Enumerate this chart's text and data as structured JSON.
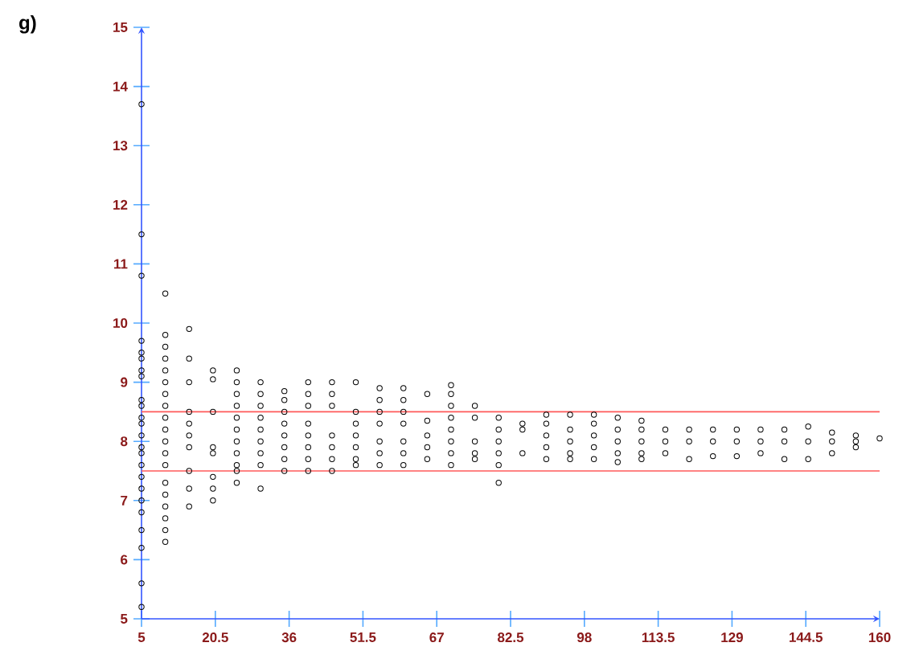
{
  "chart_data": {
    "type": "scatter",
    "marker": "circle",
    "color": "#000000",
    "annotations": [
      "g)"
    ],
    "xlim": [
      5,
      160
    ],
    "ylim": [
      5,
      15
    ],
    "xticks": [
      5,
      20.5,
      36,
      51.5,
      67,
      82.5,
      98,
      113.5,
      129,
      144.5,
      160
    ],
    "yticks": [
      5,
      6,
      7,
      8,
      9,
      10,
      11,
      12,
      13,
      14,
      15
    ],
    "ref_lines": [
      {
        "axis": "y",
        "value": 8.5,
        "color": "#ff5a5a"
      },
      {
        "axis": "y",
        "value": 7.5,
        "color": "#ff5a5a"
      }
    ],
    "x": [
      5,
      5,
      5,
      5,
      5,
      5,
      5,
      5,
      5,
      5,
      5,
      5,
      5,
      5,
      5,
      5,
      5,
      5,
      5,
      5,
      5,
      5,
      5,
      5,
      10,
      10,
      10,
      10,
      10,
      10,
      10,
      10,
      10,
      10,
      10,
      10,
      10,
      10,
      10,
      10,
      10,
      10,
      10,
      15,
      15,
      15,
      15,
      15,
      15,
      15,
      15,
      15,
      15,
      20,
      20,
      20,
      20,
      20,
      20,
      20,
      20,
      25,
      25,
      25,
      25,
      25,
      25,
      25,
      25,
      25,
      25,
      25,
      30,
      30,
      30,
      30,
      30,
      30,
      30,
      30,
      30,
      35,
      35,
      35,
      35,
      35,
      35,
      35,
      35,
      40,
      40,
      40,
      40,
      40,
      40,
      40,
      40,
      45,
      45,
      45,
      45,
      45,
      45,
      45,
      50,
      50,
      50,
      50,
      50,
      50,
      50,
      55,
      55,
      55,
      55,
      55,
      55,
      55,
      60,
      60,
      60,
      60,
      60,
      60,
      60,
      65,
      65,
      65,
      65,
      65,
      70,
      70,
      70,
      70,
      70,
      70,
      70,
      70,
      75,
      75,
      75,
      75,
      75,
      80,
      80,
      80,
      80,
      80,
      80,
      85,
      85,
      85,
      90,
      90,
      90,
      90,
      90,
      95,
      95,
      95,
      95,
      95,
      100,
      100,
      100,
      100,
      100,
      105,
      105,
      105,
      105,
      105,
      110,
      110,
      110,
      110,
      110,
      115,
      115,
      115,
      120,
      120,
      120,
      125,
      125,
      125,
      130,
      130,
      130,
      135,
      135,
      135,
      140,
      140,
      140,
      145,
      145,
      145,
      150,
      150,
      150,
      155,
      155,
      155,
      160
    ],
    "values": [
      13.7,
      11.5,
      10.8,
      9.7,
      9.5,
      9.4,
      9.2,
      9.1,
      8.7,
      8.6,
      8.4,
      8.3,
      8.1,
      7.9,
      7.8,
      7.6,
      7.4,
      7.2,
      7.0,
      6.8,
      6.5,
      6.2,
      5.6,
      5.2,
      10.5,
      9.8,
      9.6,
      9.4,
      9.2,
      9.0,
      8.8,
      8.6,
      8.4,
      8.2,
      8.0,
      7.8,
      7.6,
      7.3,
      7.1,
      6.9,
      6.7,
      6.5,
      6.3,
      9.9,
      9.4,
      9.0,
      8.5,
      8.3,
      8.1,
      7.9,
      7.5,
      7.2,
      6.9,
      9.2,
      9.05,
      8.5,
      7.9,
      7.8,
      7.4,
      7.2,
      7.0,
      9.2,
      9.0,
      8.8,
      8.6,
      8.4,
      8.2,
      8.0,
      7.8,
      7.6,
      7.5,
      7.3,
      9.0,
      8.8,
      8.6,
      8.4,
      8.2,
      8.0,
      7.8,
      7.6,
      7.2,
      8.85,
      8.7,
      8.5,
      8.3,
      8.1,
      7.9,
      7.7,
      7.5,
      9.0,
      8.8,
      8.6,
      8.3,
      8.1,
      7.9,
      7.7,
      7.5,
      9.0,
      8.8,
      8.6,
      8.1,
      7.9,
      7.7,
      7.5,
      9.0,
      8.5,
      8.3,
      8.1,
      7.9,
      7.7,
      7.6,
      8.9,
      8.7,
      8.5,
      8.3,
      8.0,
      7.8,
      7.6,
      8.9,
      8.7,
      8.5,
      8.3,
      8.0,
      7.8,
      7.6,
      8.8,
      8.35,
      8.1,
      7.9,
      7.7,
      8.95,
      8.8,
      8.6,
      8.4,
      8.2,
      8.0,
      7.8,
      7.6,
      8.6,
      8.4,
      8.0,
      7.8,
      7.7,
      8.4,
      8.2,
      8.0,
      7.8,
      7.6,
      7.3,
      8.3,
      8.2,
      7.8,
      8.45,
      8.3,
      8.1,
      7.9,
      7.7,
      8.45,
      8.2,
      8.0,
      7.8,
      7.7,
      8.45,
      8.3,
      8.1,
      7.9,
      7.7,
      8.4,
      8.2,
      8.0,
      7.8,
      7.65,
      8.35,
      8.2,
      8.0,
      7.8,
      7.7,
      8.2,
      8.0,
      7.8,
      8.2,
      8.0,
      7.7,
      8.2,
      8.0,
      7.75,
      8.2,
      8.0,
      7.75,
      8.2,
      8.0,
      7.8,
      8.2,
      8.0,
      7.7,
      8.25,
      8.0,
      7.7,
      8.15,
      8.0,
      7.8,
      8.1,
      8.0,
      7.9,
      8.05
    ]
  }
}
